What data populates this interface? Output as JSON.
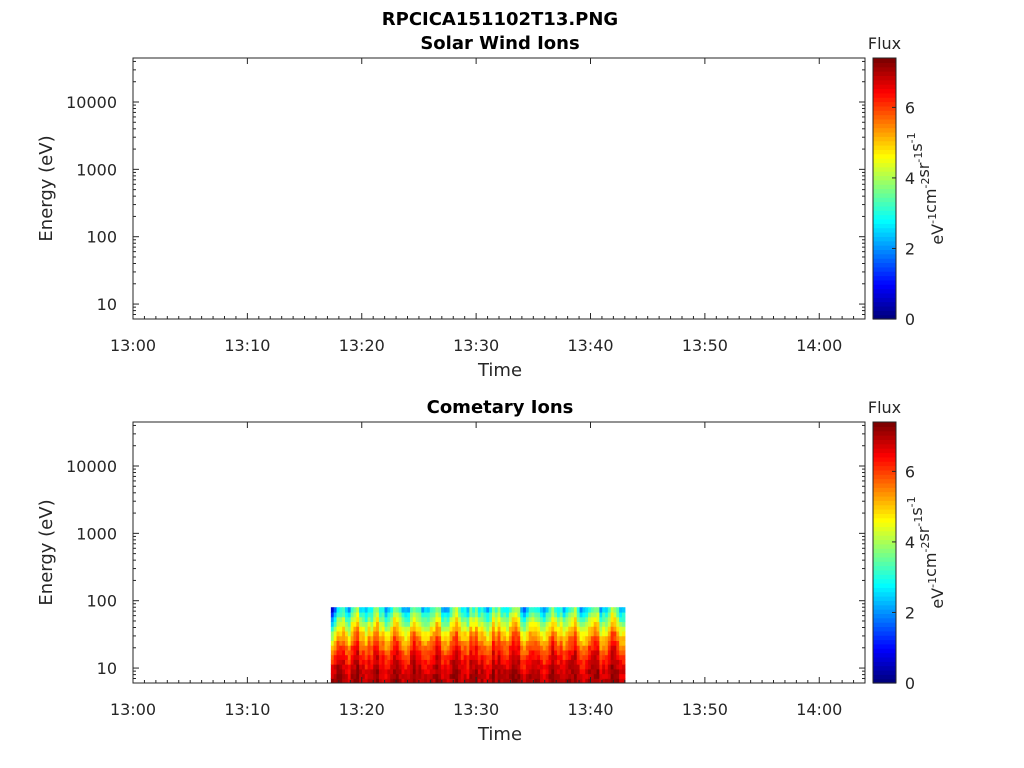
{
  "figure_title": "RPCICA151102T13.PNG",
  "chart_data": [
    {
      "type": "heatmap",
      "title": "Solar Wind Ions",
      "xlabel": "Time",
      "ylabel": "Energy (eV)",
      "x_ticks": [
        "13:00",
        "13:10",
        "13:20",
        "13:30",
        "13:40",
        "13:50",
        "14:00"
      ],
      "xlim_minutes": [
        0,
        64
      ],
      "y_scale": "log",
      "y_ticks": [
        10,
        100,
        1000,
        10000
      ],
      "ylim": [
        6,
        45000
      ],
      "colorbar": {
        "label": "Flux",
        "unit_base": [
          "eV",
          "cm",
          "sr",
          "s"
        ],
        "unit_exp": [
          "-1",
          "-2",
          "-1",
          "-1"
        ],
        "ticks": [
          0,
          2,
          4,
          6
        ],
        "range": [
          0,
          7.4
        ],
        "colormap": "jet"
      },
      "data_regions": []
    },
    {
      "type": "heatmap",
      "title": "Cometary Ions",
      "xlabel": "Time",
      "ylabel": "Energy (eV)",
      "x_ticks": [
        "13:00",
        "13:10",
        "13:20",
        "13:30",
        "13:40",
        "13:50",
        "14:00"
      ],
      "xlim_minutes": [
        0,
        64
      ],
      "y_scale": "log",
      "y_ticks": [
        10,
        100,
        1000,
        10000
      ],
      "ylim": [
        6,
        45000
      ],
      "colorbar": {
        "label": "Flux",
        "unit_base": [
          "eV",
          "cm",
          "sr",
          "s"
        ],
        "unit_exp": [
          "-1",
          "-2",
          "-1",
          "-1"
        ],
        "ticks": [
          0,
          2,
          4,
          6
        ],
        "range": [
          0,
          7.4
        ],
        "colormap": "jet"
      },
      "data_regions": [
        {
          "t_start_minutes": 17.3,
          "t_end_minutes": 43.0,
          "energy_min_ev": 6,
          "energy_max_ev": 80,
          "flux_at_low_energy": 7.0,
          "flux_at_high_energy": 2.5
        }
      ]
    }
  ]
}
